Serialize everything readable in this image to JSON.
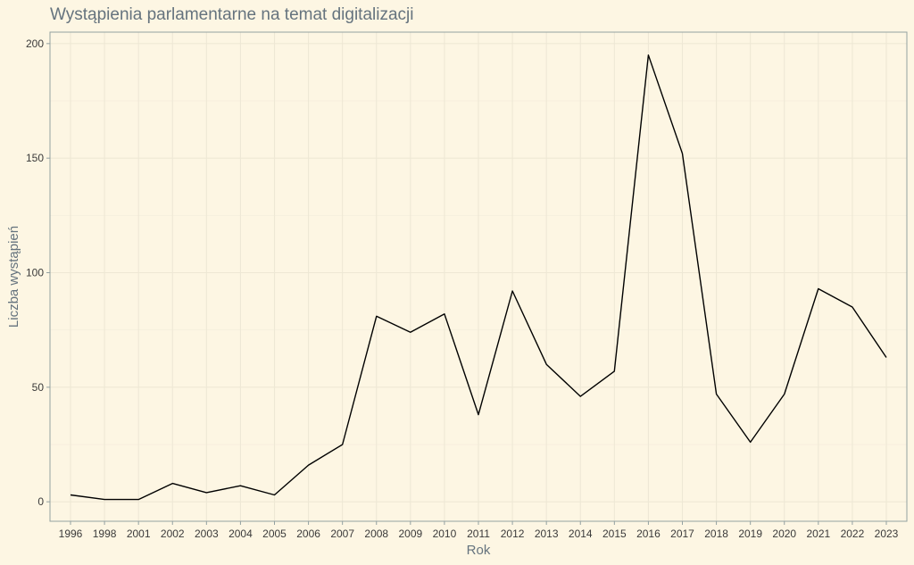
{
  "chart_data": {
    "type": "line",
    "title": "Wystąpienia parlamentarne na temat digitalizacji",
    "xlabel": "Rok",
    "ylabel": "Liczba wystąpień",
    "categories": [
      "1996",
      "1998",
      "2001",
      "2002",
      "2003",
      "2004",
      "2005",
      "2006",
      "2007",
      "2008",
      "2009",
      "2010",
      "2011",
      "2012",
      "2013",
      "2014",
      "2015",
      "2016",
      "2017",
      "2018",
      "2019",
      "2020",
      "2021",
      "2022",
      "2023"
    ],
    "series": [
      {
        "values": [
          3,
          1,
          1,
          8,
          4,
          7,
          3,
          16,
          25,
          81,
          74,
          82,
          38,
          92,
          60,
          46,
          57,
          195,
          152,
          47,
          26,
          47,
          93,
          85,
          63
        ]
      }
    ],
    "yticks": [
      0,
      50,
      100,
      150,
      200
    ],
    "ylim": [
      -8.5,
      205
    ],
    "grid": true,
    "legend": "none",
    "colors": {
      "background": "#fdf6e3",
      "line": "#000000"
    }
  }
}
